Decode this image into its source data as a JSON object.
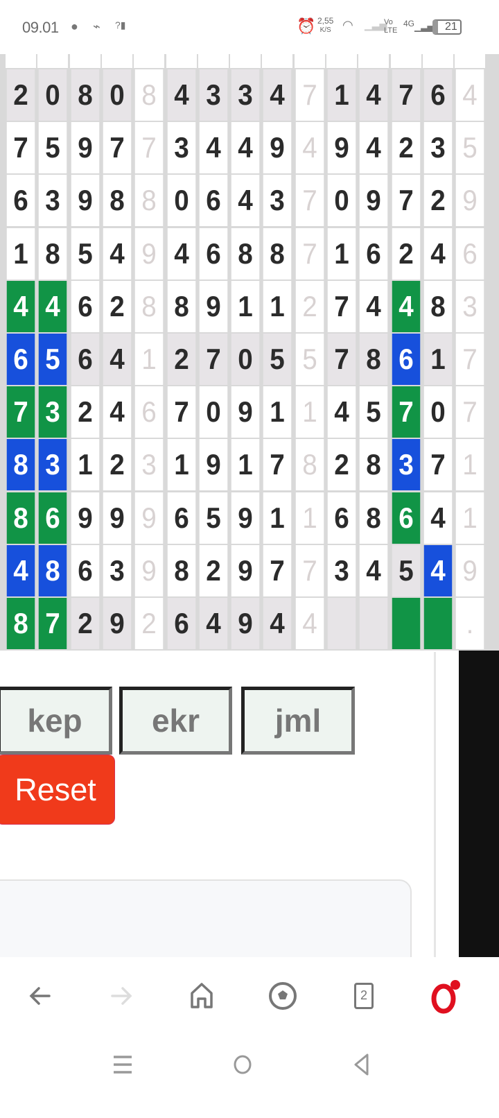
{
  "status_bar": {
    "time": "09.01",
    "net_speed": "2,55",
    "net_unit": "K/S",
    "volte": "Vo LTE",
    "network": "4G",
    "battery": "21",
    "icons": [
      "messenger-icon",
      "broom-icon",
      "no-signal-icon",
      "alarm-icon",
      "wifi-icon",
      "signal-icon",
      "battery-icon"
    ]
  },
  "grid": {
    "rows": [
      [
        "2",
        "0",
        "8",
        "0",
        "8",
        "4",
        "3",
        "3",
        "4",
        "7",
        "1",
        "4",
        "7",
        "6",
        "4"
      ],
      [
        "7",
        "5",
        "9",
        "7",
        "7",
        "3",
        "4",
        "4",
        "9",
        "4",
        "9",
        "4",
        "2",
        "3",
        "5"
      ],
      [
        "6",
        "3",
        "9",
        "8",
        "8",
        "0",
        "6",
        "4",
        "3",
        "7",
        "0",
        "9",
        "7",
        "2",
        "9"
      ],
      [
        "1",
        "8",
        "5",
        "4",
        "9",
        "4",
        "6",
        "8",
        "8",
        "7",
        "1",
        "6",
        "2",
        "4",
        "6"
      ],
      [
        "4",
        "4",
        "6",
        "2",
        "8",
        "8",
        "9",
        "1",
        "1",
        "2",
        "7",
        "4",
        "4",
        "8",
        "3"
      ],
      [
        "6",
        "5",
        "6",
        "4",
        "1",
        "2",
        "7",
        "0",
        "5",
        "5",
        "7",
        "8",
        "6",
        "1",
        "7"
      ],
      [
        "7",
        "3",
        "2",
        "4",
        "6",
        "7",
        "0",
        "9",
        "1",
        "1",
        "4",
        "5",
        "7",
        "0",
        "7"
      ],
      [
        "8",
        "3",
        "1",
        "2",
        "3",
        "1",
        "9",
        "1",
        "7",
        "8",
        "2",
        "8",
        "3",
        "7",
        "1"
      ],
      [
        "8",
        "6",
        "9",
        "9",
        "9",
        "6",
        "5",
        "9",
        "1",
        "1",
        "6",
        "8",
        "6",
        "4",
        "1"
      ],
      [
        "4",
        "8",
        "6",
        "3",
        "9",
        "8",
        "2",
        "9",
        "7",
        "7",
        "3",
        "4",
        "5",
        "4",
        "9"
      ],
      [
        "8",
        "7",
        "2",
        "9",
        "2",
        "6",
        "4",
        "9",
        "4",
        "4",
        "",
        "",
        "",
        "",
        "."
      ]
    ],
    "states": [
      "sssswssssw ssssw",
      "wwwwwwwwwwwwwww",
      "wwwwwwwwwwwwwww",
      "wwwwwwwwwwwwwww",
      "ggwwwwwwwwwwgww",
      "bbsswssssw ssbsw",
      "ggwwwwwwwwwwgww",
      "bbwwwwwwwwwwbww",
      "ggwwwwwwwwwwgww",
      "bbwwwwwwwwwwsbw",
      "ggsswssssw ssggw"
    ],
    "faded_columns": [
      4,
      9,
      14
    ],
    "colors": {
      "green": "#119446",
      "blue": "#1750dc",
      "shaded": "#e7e4e7",
      "faded_text": "#d8d2d2"
    }
  },
  "buttons": {
    "kep": "kep",
    "ekr": "ekr",
    "jml": "jml",
    "reset": "Reset"
  },
  "colors": {
    "reset": "#f03a1b",
    "opera": "#e0101f"
  },
  "browser_nav": {
    "tab_count": "2"
  }
}
